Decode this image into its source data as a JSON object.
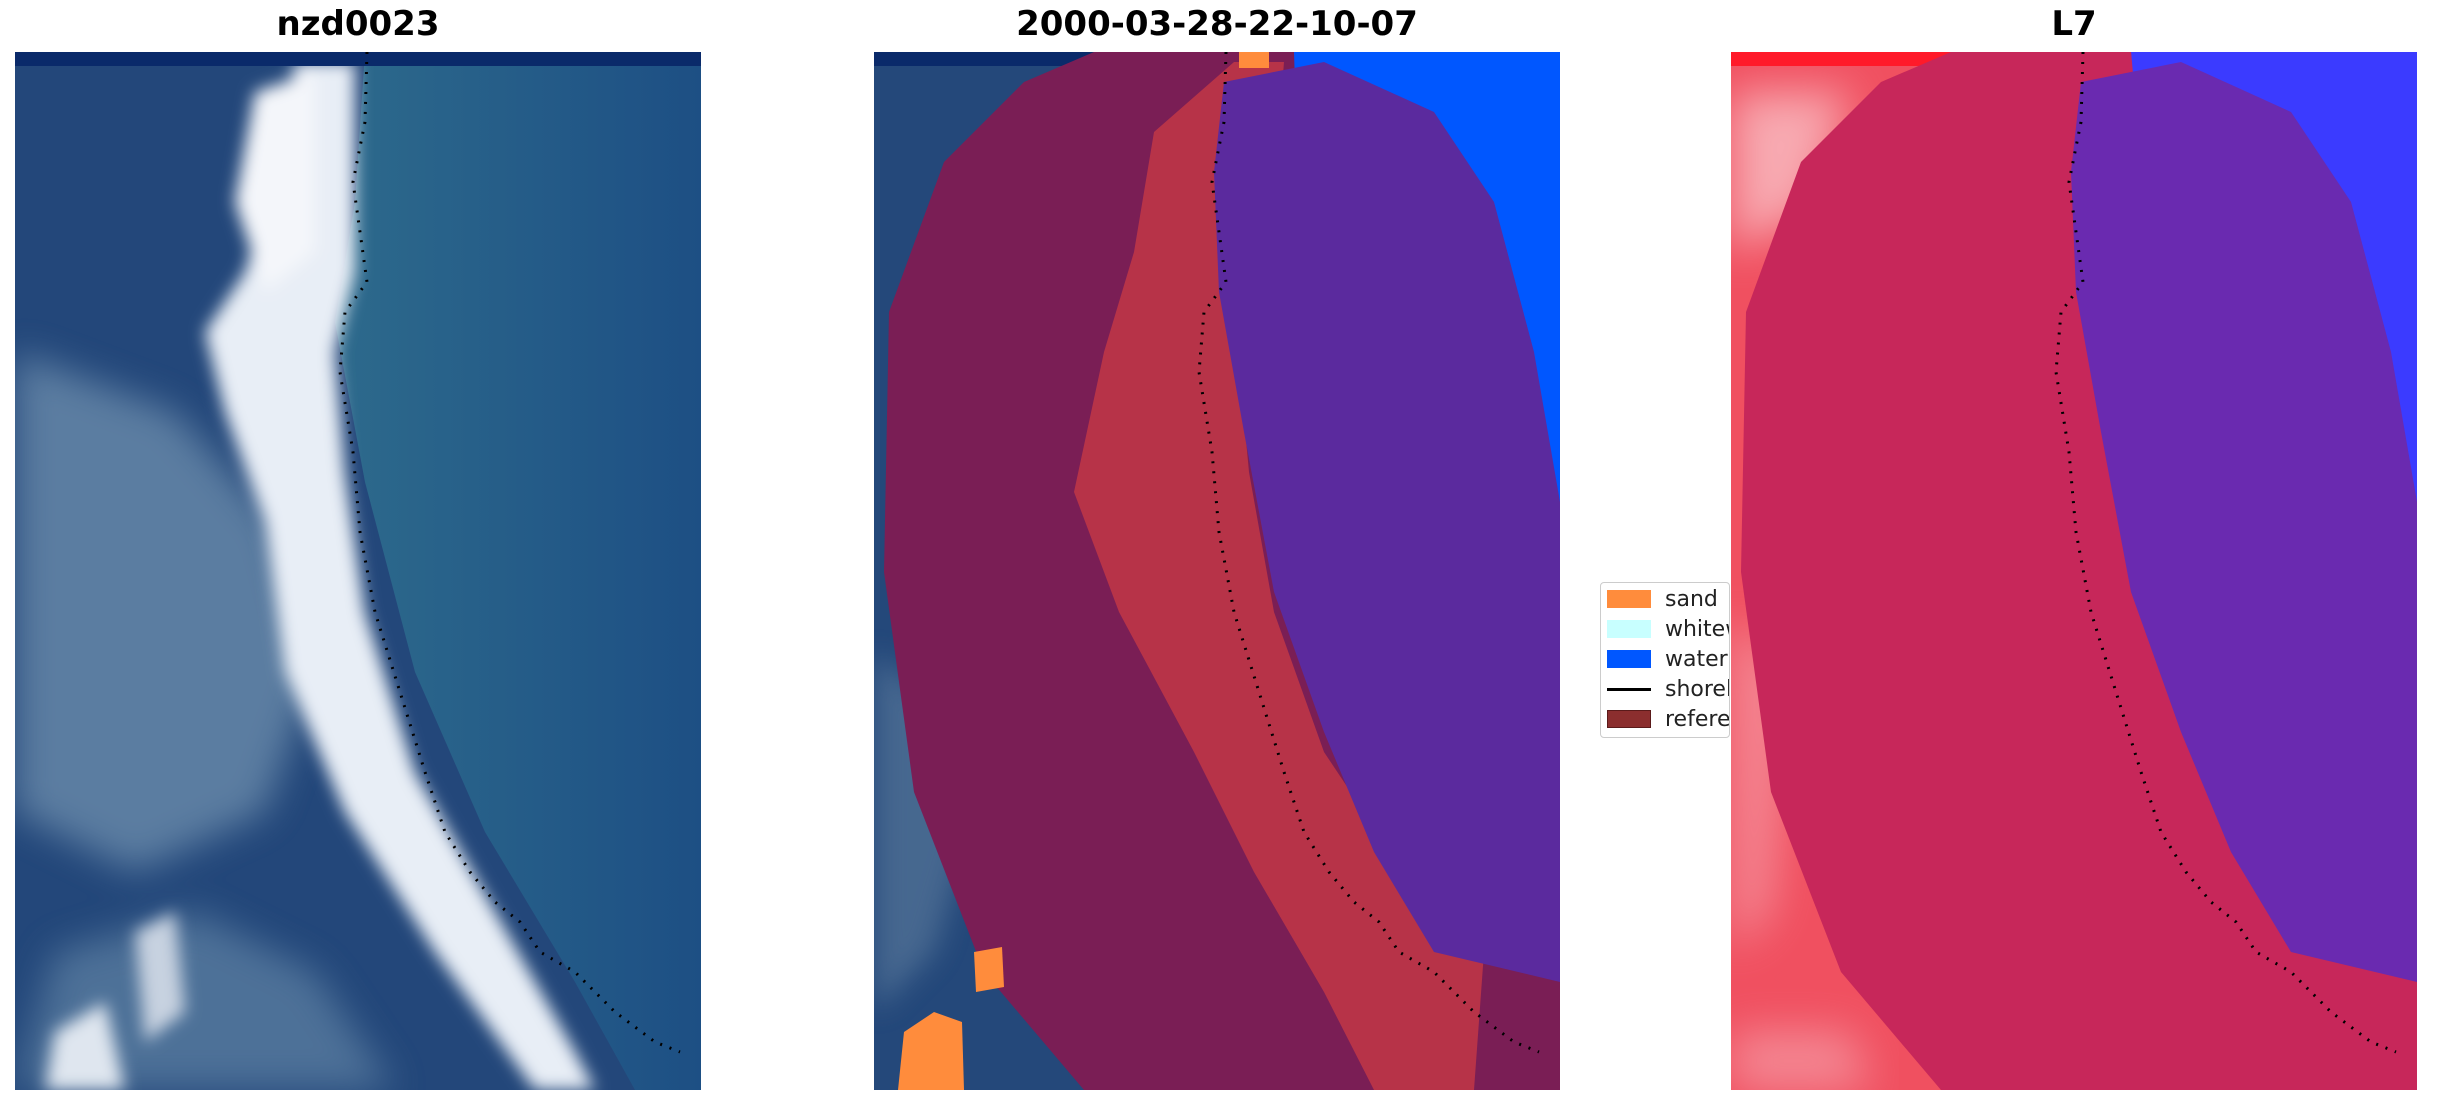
{
  "panels": [
    {
      "title": "nzd0023"
    },
    {
      "title": "2000-03-28-22-10-07"
    },
    {
      "title": "L7"
    }
  ],
  "legend": {
    "items": [
      {
        "label": "sand",
        "color": "#ff8c3c",
        "kind": "patch"
      },
      {
        "label": "whitewater",
        "color": "#c8ffff",
        "kind": "patch"
      },
      {
        "label": "water",
        "color": "#0057ff",
        "kind": "patch"
      },
      {
        "label": "shoreline",
        "color": "#000000",
        "kind": "line"
      },
      {
        "label": "reference shoreline buffer",
        "color": "#8b2e2e",
        "kind": "patch"
      }
    ]
  },
  "colors": {
    "ocean": "#1e4d80",
    "surf": "#e6eef7",
    "land_rgb": "#244a7a",
    "class_overlay": "#7a1e55",
    "classified_sand": "#b73348",
    "classified_water": "#5b2a9e",
    "water_class": "#0057ff",
    "l7_land": "#f05060",
    "l7_buffer": "#c7275a",
    "l7_water": "#3b3bff",
    "l7_water_buffer": "#6a2ab0"
  }
}
